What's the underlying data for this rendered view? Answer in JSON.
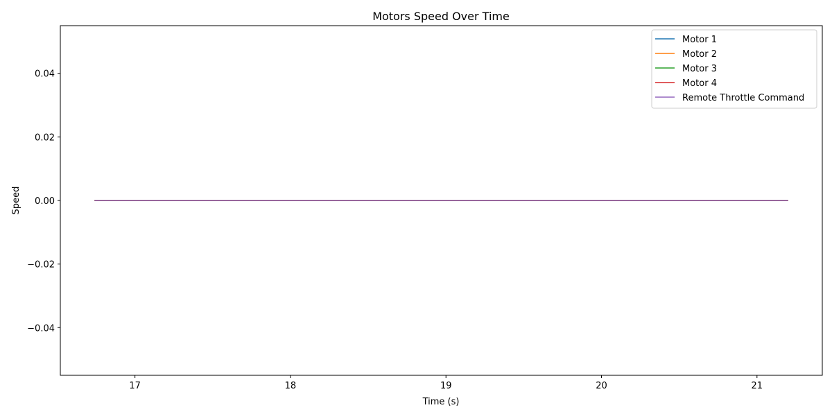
{
  "chart_data": {
    "type": "line",
    "title": "Motors Speed Over Time",
    "xlabel": "Time (s)",
    "ylabel": "Speed",
    "xlim": [
      16.52,
      21.42
    ],
    "ylim": [
      -0.055,
      0.055
    ],
    "xticks": [
      17,
      18,
      19,
      20,
      21
    ],
    "xtick_labels": [
      "17",
      "18",
      "19",
      "20",
      "21"
    ],
    "yticks": [
      0.04,
      0.02,
      0.0,
      -0.02,
      -0.04
    ],
    "ytick_labels": [
      "0.04",
      "0.02",
      "0.00",
      "−0.02",
      "−0.04"
    ],
    "grid": false,
    "legend_position": "top-right",
    "x": [
      16.74,
      21.2
    ],
    "series": [
      {
        "name": "Motor 1",
        "color": "#1f77b4",
        "values": [
          0.0,
          0.0
        ]
      },
      {
        "name": "Motor 2",
        "color": "#ff7f0e",
        "values": [
          0.0,
          0.0
        ]
      },
      {
        "name": "Motor 3",
        "color": "#2ca02c",
        "values": [
          0.0,
          0.0
        ]
      },
      {
        "name": "Motor 4",
        "color": "#d62728",
        "values": [
          0.0,
          0.0
        ]
      },
      {
        "name": "Remote Throttle Command",
        "color": "#9467bd",
        "values": [
          0.0,
          0.0
        ]
      }
    ]
  }
}
